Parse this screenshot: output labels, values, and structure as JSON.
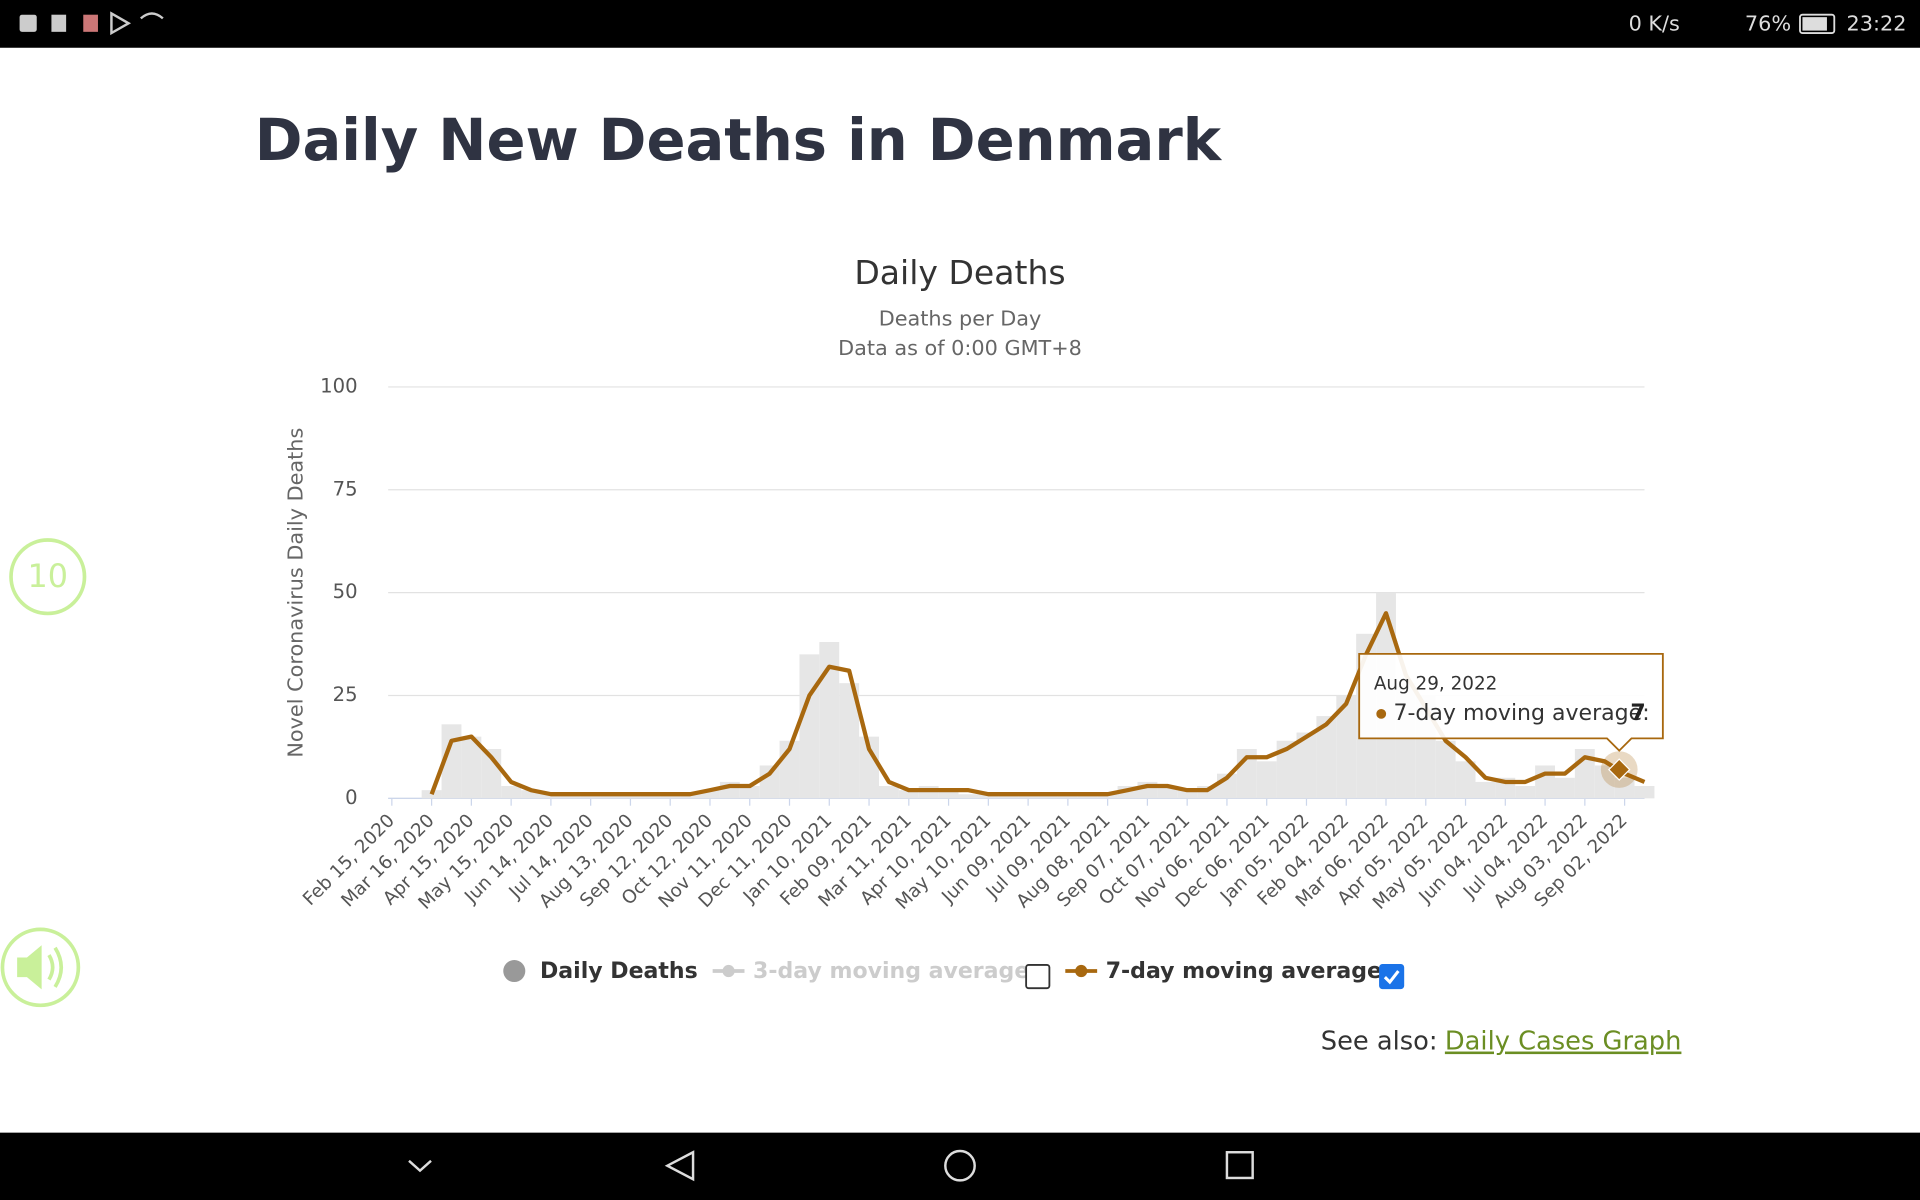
{
  "status_bar": {
    "speed": "0 K/s",
    "battery": "76%",
    "time": "23:22"
  },
  "page_title": "Daily New Deaths in Denmark",
  "badge": "10",
  "chart_data": {
    "type": "line",
    "title": "Daily Deaths",
    "subtitle": "Deaths per Day",
    "subtitle2": "Data as of 0:00 GMT+8",
    "y_label": "Novel Coronavirus Daily Deaths",
    "categories": [
      "Feb 15, 2020",
      null,
      "Mar 16, 2020",
      null,
      "Apr 15, 2020",
      null,
      "May 15, 2020",
      null,
      "Jun 14, 2020",
      null,
      "Jul 14, 2020",
      null,
      "Aug 13, 2020",
      null,
      "Sep 12, 2020",
      null,
      "Oct 12, 2020",
      null,
      "Nov 11, 2020",
      null,
      "Dec 11, 2020",
      null,
      "Jan 10, 2021",
      null,
      "Feb 09, 2021",
      null,
      "Mar 11, 2021",
      null,
      "Apr 10, 2021",
      null,
      "May 10, 2021",
      null,
      "Jun 09, 2021",
      null,
      "Jul 09, 2021",
      null,
      "Aug 08, 2021",
      null,
      "Sep 07, 2021",
      null,
      "Oct 07, 2021",
      null,
      "Nov 06, 2021",
      null,
      "Dec 06, 2021",
      null,
      "Jan 05, 2022",
      null,
      "Feb 04, 2022",
      null,
      "Mar 06, 2022",
      null,
      "Apr 05, 2022",
      null,
      "May 05, 2022",
      null,
      "Jun 04, 2022",
      null,
      "Jul 04, 2022",
      null,
      "Aug 03, 2022",
      null,
      "Sep 02, 2022",
      null
    ],
    "series": [
      {
        "name": "Daily Deaths",
        "type": "column",
        "color": "#e6e6e6",
        "legend_color": "#999999",
        "values": [
          null,
          null,
          2,
          18,
          15,
          12,
          3,
          2,
          1,
          1,
          1,
          1,
          1,
          1,
          1,
          1,
          2,
          4,
          3,
          8,
          14,
          35,
          38,
          28,
          15,
          3,
          2,
          3,
          2,
          1,
          1,
          1,
          1,
          1,
          1,
          1,
          1,
          3,
          4,
          3,
          2,
          3,
          6,
          12,
          9,
          14,
          16,
          20,
          25,
          40,
          50,
          28,
          25,
          14,
          9,
          4,
          5,
          3,
          8,
          5,
          12,
          8,
          5,
          3
        ]
      },
      {
        "name": "3-day moving average",
        "type": "line",
        "color": "#cccccc",
        "visible": false
      },
      {
        "name": "7-day moving average",
        "type": "line",
        "color": "#a8680f",
        "visible": true,
        "values": [
          null,
          null,
          1,
          14,
          15,
          10,
          4,
          2,
          1,
          1,
          1,
          1,
          1,
          1,
          1,
          1,
          2,
          3,
          3,
          6,
          12,
          25,
          32,
          31,
          12,
          4,
          2,
          2,
          2,
          2,
          1,
          1,
          1,
          1,
          1,
          1,
          1,
          2,
          3,
          3,
          2,
          2,
          5,
          10,
          10,
          12,
          15,
          18,
          23,
          35,
          45,
          30,
          22,
          14,
          10,
          5,
          4,
          4,
          6,
          6,
          10,
          9,
          6,
          4
        ]
      }
    ],
    "ylim": [
      0,
      100
    ],
    "yticks": [
      0,
      25,
      50,
      75,
      100
    ],
    "grid": true,
    "tooltip": {
      "date": "Aug 29, 2022",
      "label": "7-day moving average:",
      "value": 7
    }
  },
  "see_also": {
    "label": "See also:",
    "link": "Daily Cases Graph"
  }
}
